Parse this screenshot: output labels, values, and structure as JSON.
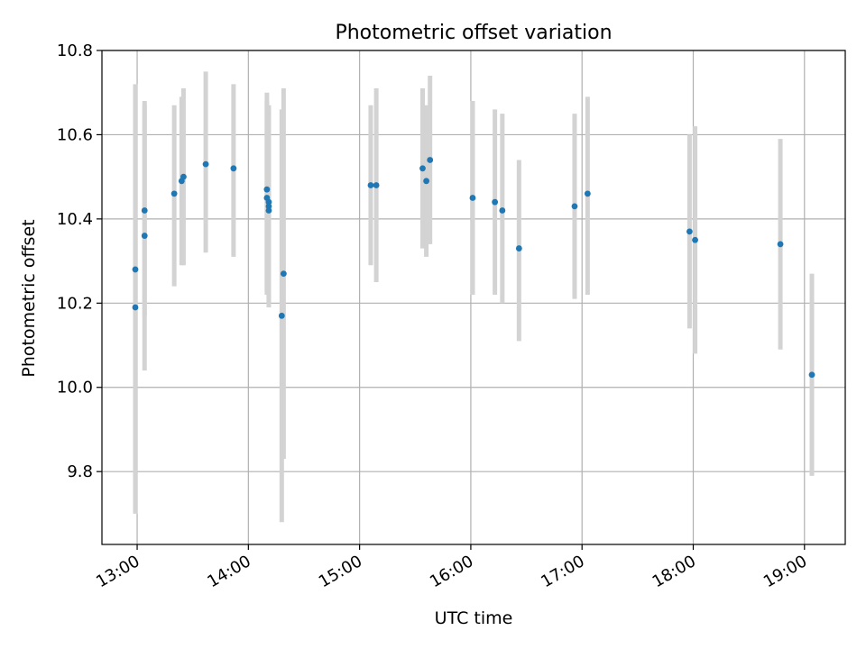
{
  "chart_data": {
    "type": "scatter",
    "title": "Photometric offset variation",
    "xlabel": "UTC time",
    "ylabel": "Photometric offset",
    "x_unit": "UTC time (HH:MM)",
    "xlim": [
      "12:41",
      "19:22"
    ],
    "ylim": [
      9.627,
      10.8
    ],
    "xticks": [
      "13:00",
      "14:00",
      "15:00",
      "16:00",
      "17:00",
      "18:00",
      "19:00"
    ],
    "yticks": [
      9.8,
      10.0,
      10.2,
      10.4,
      10.6,
      10.8
    ],
    "grid": true,
    "error_bars": true,
    "colors": {
      "points": "#1f77b4",
      "error_bars": "#d3d3d3",
      "grid": "#b0b0b0",
      "axes": "#000000"
    },
    "points": [
      {
        "x": "12:59",
        "y": 10.19,
        "ylo": 9.7,
        "yhi": 10.68
      },
      {
        "x": "12:59",
        "y": 10.28,
        "ylo": 9.84,
        "yhi": 10.72
      },
      {
        "x": "13:04",
        "y": 10.36,
        "ylo": 10.04,
        "yhi": 10.68
      },
      {
        "x": "13:04",
        "y": 10.42,
        "ylo": 10.17,
        "yhi": 10.67
      },
      {
        "x": "13:20",
        "y": 10.46,
        "ylo": 10.24,
        "yhi": 10.67
      },
      {
        "x": "13:24",
        "y": 10.49,
        "ylo": 10.29,
        "yhi": 10.69
      },
      {
        "x": "13:25",
        "y": 10.5,
        "ylo": 10.29,
        "yhi": 10.71
      },
      {
        "x": "13:37",
        "y": 10.53,
        "ylo": 10.32,
        "yhi": 10.75
      },
      {
        "x": "13:52",
        "y": 10.52,
        "ylo": 10.31,
        "yhi": 10.72
      },
      {
        "x": "14:10",
        "y": 10.47,
        "ylo": 10.22,
        "yhi": 10.7
      },
      {
        "x": "14:10",
        "y": 10.45,
        "ylo": 10.23,
        "yhi": 10.68
      },
      {
        "x": "14:11",
        "y": 10.43,
        "ylo": 10.19,
        "yhi": 10.67
      },
      {
        "x": "14:11",
        "y": 10.42,
        "ylo": 10.2,
        "yhi": 10.65
      },
      {
        "x": "14:11",
        "y": 10.44,
        "ylo": 10.22,
        "yhi": 10.66
      },
      {
        "x": "14:18",
        "y": 10.17,
        "ylo": 9.68,
        "yhi": 10.66
      },
      {
        "x": "14:19",
        "y": 10.27,
        "ylo": 9.83,
        "yhi": 10.71
      },
      {
        "x": "15:06",
        "y": 10.48,
        "ylo": 10.29,
        "yhi": 10.67
      },
      {
        "x": "15:09",
        "y": 10.48,
        "ylo": 10.25,
        "yhi": 10.71
      },
      {
        "x": "15:34",
        "y": 10.52,
        "ylo": 10.33,
        "yhi": 10.71
      },
      {
        "x": "15:36",
        "y": 10.49,
        "ylo": 10.31,
        "yhi": 10.67
      },
      {
        "x": "15:38",
        "y": 10.54,
        "ylo": 10.34,
        "yhi": 10.74
      },
      {
        "x": "16:01",
        "y": 10.45,
        "ylo": 10.22,
        "yhi": 10.68
      },
      {
        "x": "16:13",
        "y": 10.44,
        "ylo": 10.22,
        "yhi": 10.66
      },
      {
        "x": "16:17",
        "y": 10.42,
        "ylo": 10.2,
        "yhi": 10.65
      },
      {
        "x": "16:26",
        "y": 10.33,
        "ylo": 10.11,
        "yhi": 10.54
      },
      {
        "x": "16:56",
        "y": 10.43,
        "ylo": 10.21,
        "yhi": 10.65
      },
      {
        "x": "17:03",
        "y": 10.46,
        "ylo": 10.22,
        "yhi": 10.69
      },
      {
        "x": "17:58",
        "y": 10.37,
        "ylo": 10.14,
        "yhi": 10.6
      },
      {
        "x": "18:01",
        "y": 10.35,
        "ylo": 10.08,
        "yhi": 10.62
      },
      {
        "x": "18:47",
        "y": 10.34,
        "ylo": 10.09,
        "yhi": 10.59
      },
      {
        "x": "19:04",
        "y": 10.03,
        "ylo": 9.79,
        "yhi": 10.27
      }
    ]
  }
}
